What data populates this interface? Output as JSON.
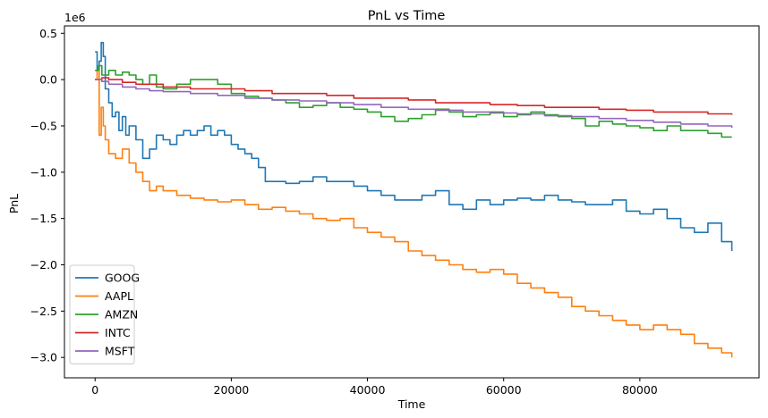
{
  "chart_data": {
    "type": "line",
    "title": "PnL vs Time",
    "xlabel": "Time",
    "ylabel": "PnL",
    "y_scale_label": "1e6",
    "xlim": [
      -4500,
      97500
    ],
    "ylim": [
      -3.22,
      0.58
    ],
    "xticks": [
      0,
      20000,
      40000,
      60000,
      80000
    ],
    "xtick_labels": [
      "0",
      "20000",
      "40000",
      "60000",
      "80000"
    ],
    "yticks": [
      0.5,
      0.0,
      -0.5,
      -1.0,
      -1.5,
      -2.0,
      -2.5,
      -3.0
    ],
    "ytick_labels": [
      "0.5",
      "0.0",
      "−0.5",
      "−1.0",
      "−1.5",
      "−2.0",
      "−2.5",
      "−3.0"
    ],
    "grid": false,
    "legend_position": "lower-left",
    "series": [
      {
        "name": "GOOG",
        "color": "#1f77b4",
        "x": [
          0,
          300,
          600,
          900,
          1200,
          1500,
          2000,
          2500,
          3000,
          3500,
          4000,
          4500,
          5000,
          6000,
          7000,
          8000,
          9000,
          10000,
          11000,
          12000,
          13000,
          14000,
          15000,
          16000,
          17000,
          18000,
          19000,
          20000,
          21000,
          22000,
          23000,
          24000,
          25000,
          26000,
          28000,
          30000,
          32000,
          34000,
          36000,
          38000,
          40000,
          42000,
          44000,
          46000,
          48000,
          50000,
          52000,
          54000,
          56000,
          58000,
          60000,
          62000,
          64000,
          66000,
          68000,
          70000,
          72000,
          74000,
          76000,
          78000,
          80000,
          82000,
          84000,
          86000,
          88000,
          90000,
          92000,
          93500
        ],
        "y": [
          0.3,
          0.1,
          0.2,
          0.4,
          0.25,
          -0.1,
          -0.25,
          -0.4,
          -0.35,
          -0.55,
          -0.4,
          -0.6,
          -0.5,
          -0.65,
          -0.85,
          -0.75,
          -0.6,
          -0.65,
          -0.7,
          -0.6,
          -0.55,
          -0.6,
          -0.55,
          -0.5,
          -0.6,
          -0.55,
          -0.6,
          -0.7,
          -0.75,
          -0.8,
          -0.85,
          -0.95,
          -1.1,
          -1.1,
          -1.12,
          -1.1,
          -1.05,
          -1.1,
          -1.1,
          -1.15,
          -1.2,
          -1.25,
          -1.3,
          -1.3,
          -1.25,
          -1.2,
          -1.35,
          -1.4,
          -1.3,
          -1.35,
          -1.3,
          -1.28,
          -1.3,
          -1.25,
          -1.3,
          -1.32,
          -1.35,
          -1.35,
          -1.3,
          -1.42,
          -1.45,
          -1.4,
          -1.5,
          -1.6,
          -1.65,
          -1.55,
          -1.75,
          -1.85
        ]
      },
      {
        "name": "AAPL",
        "color": "#ff7f0e",
        "x": [
          0,
          300,
          600,
          900,
          1200,
          1500,
          2000,
          3000,
          4000,
          5000,
          6000,
          7000,
          8000,
          9000,
          10000,
          12000,
          14000,
          16000,
          18000,
          20000,
          22000,
          24000,
          26000,
          28000,
          30000,
          32000,
          34000,
          36000,
          38000,
          40000,
          42000,
          44000,
          46000,
          48000,
          50000,
          52000,
          54000,
          56000,
          58000,
          60000,
          62000,
          64000,
          66000,
          68000,
          70000,
          72000,
          74000,
          76000,
          78000,
          80000,
          82000,
          84000,
          86000,
          88000,
          90000,
          92000,
          93500
        ],
        "y": [
          0.0,
          0.1,
          -0.6,
          -0.3,
          -0.5,
          -0.65,
          -0.8,
          -0.85,
          -0.75,
          -0.9,
          -1.0,
          -1.1,
          -1.2,
          -1.15,
          -1.2,
          -1.25,
          -1.28,
          -1.3,
          -1.32,
          -1.3,
          -1.35,
          -1.4,
          -1.38,
          -1.42,
          -1.45,
          -1.5,
          -1.52,
          -1.5,
          -1.6,
          -1.65,
          -1.7,
          -1.75,
          -1.85,
          -1.9,
          -1.95,
          -2.0,
          -2.05,
          -2.08,
          -2.05,
          -2.1,
          -2.2,
          -2.25,
          -2.3,
          -2.35,
          -2.45,
          -2.5,
          -2.55,
          -2.6,
          -2.65,
          -2.7,
          -2.65,
          -2.7,
          -2.75,
          -2.85,
          -2.9,
          -2.95,
          -3.0
        ]
      },
      {
        "name": "AMZN",
        "color": "#2ca02c",
        "x": [
          0,
          500,
          1000,
          2000,
          3000,
          4000,
          5000,
          6000,
          7000,
          8000,
          9000,
          10000,
          12000,
          14000,
          16000,
          18000,
          20000,
          22000,
          24000,
          26000,
          28000,
          30000,
          32000,
          34000,
          36000,
          38000,
          40000,
          42000,
          44000,
          46000,
          48000,
          50000,
          52000,
          54000,
          56000,
          58000,
          60000,
          62000,
          64000,
          66000,
          68000,
          70000,
          72000,
          74000,
          76000,
          78000,
          80000,
          82000,
          84000,
          86000,
          88000,
          90000,
          92000,
          93500
        ],
        "y": [
          0.1,
          0.15,
          0.05,
          0.1,
          0.05,
          0.08,
          0.05,
          0.0,
          -0.05,
          0.05,
          -0.08,
          -0.1,
          -0.05,
          0.0,
          0.0,
          -0.05,
          -0.15,
          -0.18,
          -0.2,
          -0.22,
          -0.25,
          -0.3,
          -0.28,
          -0.25,
          -0.3,
          -0.32,
          -0.35,
          -0.4,
          -0.45,
          -0.42,
          -0.38,
          -0.32,
          -0.35,
          -0.4,
          -0.38,
          -0.35,
          -0.4,
          -0.38,
          -0.35,
          -0.38,
          -0.4,
          -0.42,
          -0.5,
          -0.45,
          -0.48,
          -0.5,
          -0.52,
          -0.55,
          -0.5,
          -0.55,
          -0.55,
          -0.58,
          -0.62,
          -0.62
        ]
      },
      {
        "name": "INTC",
        "color": "#d62728",
        "x": [
          0,
          1000,
          2000,
          4000,
          6000,
          8000,
          10000,
          14000,
          18000,
          22000,
          26000,
          30000,
          34000,
          38000,
          42000,
          46000,
          50000,
          54000,
          58000,
          62000,
          66000,
          70000,
          74000,
          78000,
          82000,
          86000,
          90000,
          93500
        ],
        "y": [
          0.0,
          0.02,
          0.0,
          -0.03,
          -0.05,
          -0.05,
          -0.08,
          -0.1,
          -0.1,
          -0.12,
          -0.15,
          -0.15,
          -0.17,
          -0.2,
          -0.2,
          -0.22,
          -0.25,
          -0.25,
          -0.27,
          -0.28,
          -0.3,
          -0.3,
          -0.32,
          -0.33,
          -0.35,
          -0.35,
          -0.37,
          -0.38
        ]
      },
      {
        "name": "MSFT",
        "color": "#9467bd",
        "x": [
          0,
          1000,
          2000,
          4000,
          6000,
          8000,
          10000,
          14000,
          18000,
          22000,
          26000,
          30000,
          34000,
          38000,
          42000,
          46000,
          50000,
          54000,
          58000,
          62000,
          66000,
          70000,
          74000,
          78000,
          82000,
          86000,
          90000,
          93500
        ],
        "y": [
          0.0,
          -0.02,
          -0.05,
          -0.08,
          -0.1,
          -0.12,
          -0.13,
          -0.15,
          -0.17,
          -0.2,
          -0.22,
          -0.23,
          -0.25,
          -0.27,
          -0.3,
          -0.32,
          -0.33,
          -0.35,
          -0.36,
          -0.37,
          -0.39,
          -0.4,
          -0.42,
          -0.44,
          -0.46,
          -0.48,
          -0.5,
          -0.52
        ]
      }
    ]
  }
}
